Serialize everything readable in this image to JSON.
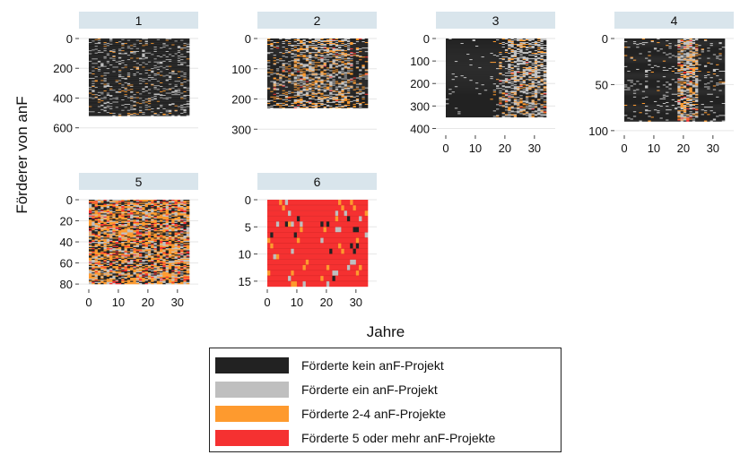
{
  "chart_data": {
    "type": "heatmap",
    "ylabel": "Förderer von anF",
    "xlabel": "Jahre",
    "x_range": [
      0,
      34
    ],
    "x_ticks": [
      0,
      10,
      20,
      30
    ],
    "states": [
      {
        "label": "Förderte kein anF-Projekt",
        "color": "#222222"
      },
      {
        "label": "Förderte ein anF-Projekt",
        "color": "#bfbfbf"
      },
      {
        "label": "Förderte 2-4 anF-Projekte",
        "color": "#fe9a2e"
      },
      {
        "label": "Förderte 5 oder mehr anF-Projekte",
        "color": "#f53131"
      }
    ],
    "panels": [
      {
        "title": "1",
        "n_rows": 520,
        "ylim": [
          0,
          650
        ],
        "y_ticks": [
          0,
          200,
          400,
          600
        ]
      },
      {
        "title": "2",
        "n_rows": 230,
        "ylim": [
          0,
          320
        ],
        "y_ticks": [
          0,
          100,
          200,
          300
        ]
      },
      {
        "title": "3",
        "n_rows": 350,
        "ylim": [
          0,
          430
        ],
        "y_ticks": [
          0,
          100,
          200,
          300,
          400
        ]
      },
      {
        "title": "4",
        "n_rows": 90,
        "ylim": [
          0,
          105
        ],
        "y_ticks": [
          0,
          50,
          100
        ]
      },
      {
        "title": "5",
        "n_rows": 80,
        "ylim": [
          0,
          85
        ],
        "y_ticks": [
          0,
          20,
          40,
          60,
          80
        ]
      },
      {
        "title": "6",
        "n_rows": 16,
        "ylim": [
          0,
          16.5
        ],
        "y_ticks": [
          0,
          5,
          10,
          15
        ]
      }
    ]
  }
}
